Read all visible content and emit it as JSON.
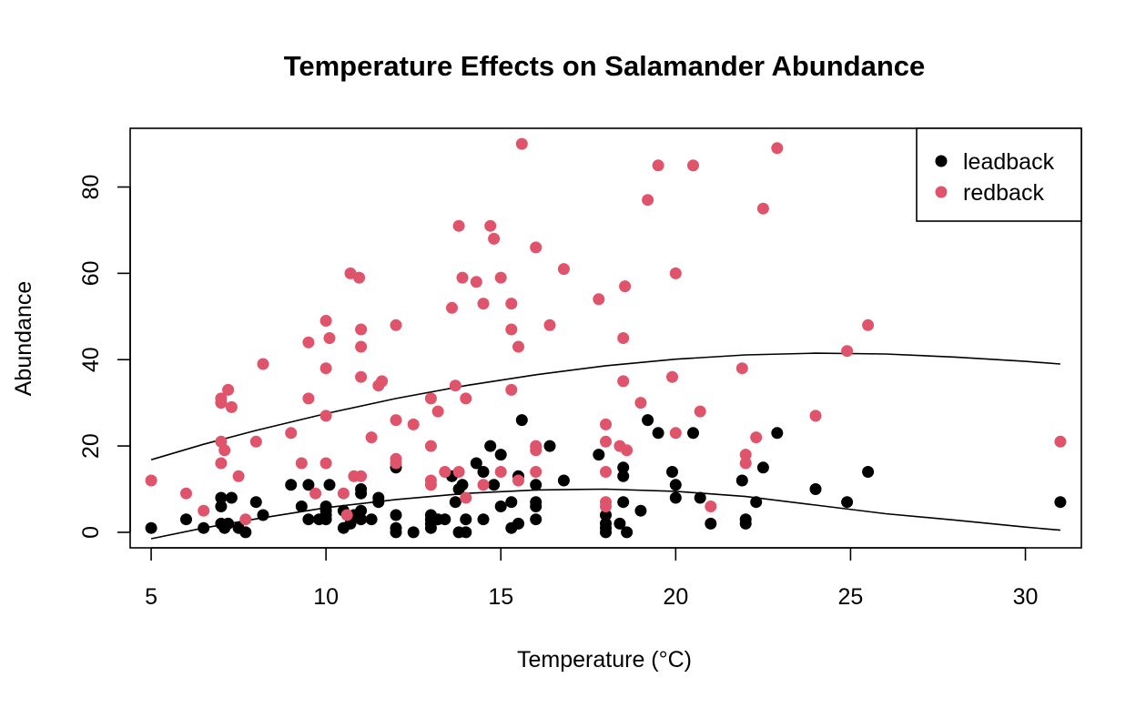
{
  "chart_data": {
    "type": "scatter",
    "title": "Temperature Effects on Salamander Abundance",
    "xlabel": "Temperature (°C)",
    "ylabel": "Abundance",
    "xlim": [
      4.4,
      31.6
    ],
    "ylim": [
      -3.6,
      93.6
    ],
    "xticks": [
      5,
      10,
      15,
      20,
      25,
      30
    ],
    "yticks": [
      0,
      20,
      40,
      60,
      80
    ],
    "grid": false,
    "legend_position": "top-right",
    "series": [
      {
        "name": "leadback",
        "color": "#000000",
        "points": [
          [
            5,
            1
          ],
          [
            6,
            3
          ],
          [
            6.5,
            1
          ],
          [
            7,
            2
          ],
          [
            7,
            6
          ],
          [
            7,
            8
          ],
          [
            7.1,
            1
          ],
          [
            7.2,
            2
          ],
          [
            7.3,
            8
          ],
          [
            7.5,
            1
          ],
          [
            7.7,
            0
          ],
          [
            8,
            7
          ],
          [
            8.2,
            4
          ],
          [
            9,
            11
          ],
          [
            9.3,
            6
          ],
          [
            9.5,
            3
          ],
          [
            9.5,
            11
          ],
          [
            9.8,
            3
          ],
          [
            10,
            3
          ],
          [
            10,
            4
          ],
          [
            10,
            5
          ],
          [
            10,
            6
          ],
          [
            10.1,
            11
          ],
          [
            10.5,
            1
          ],
          [
            10.5,
            5
          ],
          [
            10.7,
            2
          ],
          [
            10.8,
            4
          ],
          [
            11,
            3
          ],
          [
            11,
            5
          ],
          [
            11,
            9
          ],
          [
            11,
            10
          ],
          [
            11.3,
            3
          ],
          [
            11.5,
            7
          ],
          [
            11.5,
            8
          ],
          [
            12,
            0
          ],
          [
            12,
            1
          ],
          [
            12,
            4
          ],
          [
            12,
            15
          ],
          [
            12.5,
            0
          ],
          [
            13,
            1
          ],
          [
            13,
            2
          ],
          [
            13,
            3
          ],
          [
            13,
            4
          ],
          [
            13.2,
            3
          ],
          [
            13.4,
            3
          ],
          [
            13.6,
            13
          ],
          [
            13.7,
            7
          ],
          [
            13.8,
            0
          ],
          [
            13.8,
            10
          ],
          [
            13.9,
            11
          ],
          [
            14,
            0
          ],
          [
            14,
            3
          ],
          [
            14.3,
            16
          ],
          [
            14.5,
            3
          ],
          [
            14.5,
            14
          ],
          [
            14.7,
            20
          ],
          [
            14.8,
            11
          ],
          [
            15,
            6
          ],
          [
            15,
            18
          ],
          [
            15.3,
            1
          ],
          [
            15.3,
            7
          ],
          [
            15.5,
            2
          ],
          [
            15.5,
            13
          ],
          [
            15.6,
            26
          ],
          [
            16,
            3
          ],
          [
            16,
            6
          ],
          [
            16,
            7
          ],
          [
            16,
            11
          ],
          [
            16.4,
            20
          ],
          [
            16.8,
            12
          ],
          [
            17.8,
            18
          ],
          [
            18,
            0
          ],
          [
            18,
            1
          ],
          [
            18,
            2
          ],
          [
            18,
            4
          ],
          [
            18.4,
            2
          ],
          [
            18.5,
            7
          ],
          [
            18.5,
            13
          ],
          [
            18.5,
            15
          ],
          [
            18.6,
            0
          ],
          [
            19,
            5
          ],
          [
            19.2,
            26
          ],
          [
            19.5,
            23
          ],
          [
            19.9,
            14
          ],
          [
            20,
            8
          ],
          [
            20,
            11
          ],
          [
            20.5,
            23
          ],
          [
            20.7,
            8
          ],
          [
            21,
            2
          ],
          [
            21.9,
            12
          ],
          [
            22,
            2
          ],
          [
            22,
            3
          ],
          [
            22.3,
            7
          ],
          [
            22.5,
            15
          ],
          [
            22.9,
            23
          ],
          [
            24,
            10
          ],
          [
            24.9,
            7
          ],
          [
            25.5,
            14
          ],
          [
            31,
            7
          ]
        ],
        "fit_curve": [
          [
            5,
            -1.5
          ],
          [
            6.5,
            1
          ],
          [
            8,
            3.1
          ],
          [
            10,
            5.7
          ],
          [
            12,
            7.6
          ],
          [
            14,
            9
          ],
          [
            16,
            9.8
          ],
          [
            18,
            10
          ],
          [
            20,
            9.5
          ],
          [
            22,
            8.3
          ],
          [
            24,
            6.3
          ],
          [
            26,
            4.3
          ],
          [
            28,
            2.8
          ],
          [
            30,
            1.2
          ],
          [
            31,
            0.5
          ]
        ]
      },
      {
        "name": "redback",
        "color": "#DF536B",
        "points": [
          [
            5,
            12
          ],
          [
            6,
            9
          ],
          [
            6.5,
            5
          ],
          [
            7,
            16
          ],
          [
            7,
            21
          ],
          [
            7,
            30
          ],
          [
            7,
            31
          ],
          [
            7.1,
            19
          ],
          [
            7.2,
            33
          ],
          [
            7.3,
            29
          ],
          [
            7.5,
            13
          ],
          [
            7.7,
            3
          ],
          [
            8,
            21
          ],
          [
            8.2,
            39
          ],
          [
            9,
            23
          ],
          [
            9.3,
            16
          ],
          [
            9.5,
            31
          ],
          [
            9.5,
            44
          ],
          [
            9.7,
            9
          ],
          [
            10,
            16
          ],
          [
            10,
            27
          ],
          [
            10,
            38
          ],
          [
            10,
            49
          ],
          [
            10.1,
            45
          ],
          [
            10.5,
            9
          ],
          [
            10.6,
            4
          ],
          [
            10.7,
            60
          ],
          [
            10.8,
            13
          ],
          [
            11,
            13
          ],
          [
            11,
            36
          ],
          [
            11,
            43
          ],
          [
            11,
            47
          ],
          [
            10.95,
            59
          ],
          [
            11.3,
            22
          ],
          [
            11.5,
            34
          ],
          [
            11.6,
            35
          ],
          [
            12,
            16
          ],
          [
            12,
            17
          ],
          [
            12,
            26
          ],
          [
            12,
            48
          ],
          [
            12.5,
            25
          ],
          [
            13,
            11
          ],
          [
            13,
            12
          ],
          [
            13,
            20
          ],
          [
            13,
            31
          ],
          [
            13.2,
            28
          ],
          [
            13.4,
            14
          ],
          [
            13.6,
            52
          ],
          [
            13.7,
            34
          ],
          [
            13.8,
            14
          ],
          [
            13.8,
            71
          ],
          [
            13.9,
            59
          ],
          [
            14,
            8
          ],
          [
            14,
            31
          ],
          [
            14.3,
            58
          ],
          [
            14.5,
            11
          ],
          [
            14.5,
            53
          ],
          [
            14.7,
            71
          ],
          [
            14.8,
            68
          ],
          [
            15,
            14
          ],
          [
            15,
            59
          ],
          [
            15.3,
            33
          ],
          [
            15.3,
            47
          ],
          [
            15.3,
            53
          ],
          [
            15.5,
            12
          ],
          [
            15.5,
            43
          ],
          [
            15.6,
            90
          ],
          [
            16,
            14
          ],
          [
            16,
            19
          ],
          [
            16,
            20
          ],
          [
            16,
            66
          ],
          [
            16.4,
            48
          ],
          [
            16.8,
            61
          ],
          [
            17.8,
            54
          ],
          [
            18,
            6
          ],
          [
            18,
            7
          ],
          [
            18,
            14
          ],
          [
            18,
            21
          ],
          [
            18,
            25
          ],
          [
            18.4,
            20
          ],
          [
            18.5,
            35
          ],
          [
            18.5,
            45
          ],
          [
            18.6,
            19
          ],
          [
            18.55,
            57
          ],
          [
            19,
            30
          ],
          [
            19.2,
            77
          ],
          [
            19.5,
            85
          ],
          [
            19.9,
            36
          ],
          [
            20,
            23
          ],
          [
            20,
            60
          ],
          [
            20.5,
            85
          ],
          [
            20.7,
            28
          ],
          [
            21,
            6
          ],
          [
            21.9,
            38
          ],
          [
            22,
            16
          ],
          [
            22,
            18
          ],
          [
            22.3,
            22
          ],
          [
            22.5,
            75
          ],
          [
            22.9,
            89
          ],
          [
            24,
            27
          ],
          [
            24.9,
            42
          ],
          [
            25.5,
            48
          ],
          [
            31,
            21
          ]
        ],
        "fit_curve": [
          [
            5,
            16.8
          ],
          [
            6.5,
            20.4
          ],
          [
            8,
            23.6
          ],
          [
            10,
            27.5
          ],
          [
            12,
            31
          ],
          [
            14,
            34
          ],
          [
            16,
            36.5
          ],
          [
            18,
            38.6
          ],
          [
            20,
            40.1
          ],
          [
            22,
            41.1
          ],
          [
            24,
            41.5
          ],
          [
            26,
            41.3
          ],
          [
            28,
            40.6
          ],
          [
            30,
            39.6
          ],
          [
            31,
            39
          ]
        ]
      }
    ]
  }
}
